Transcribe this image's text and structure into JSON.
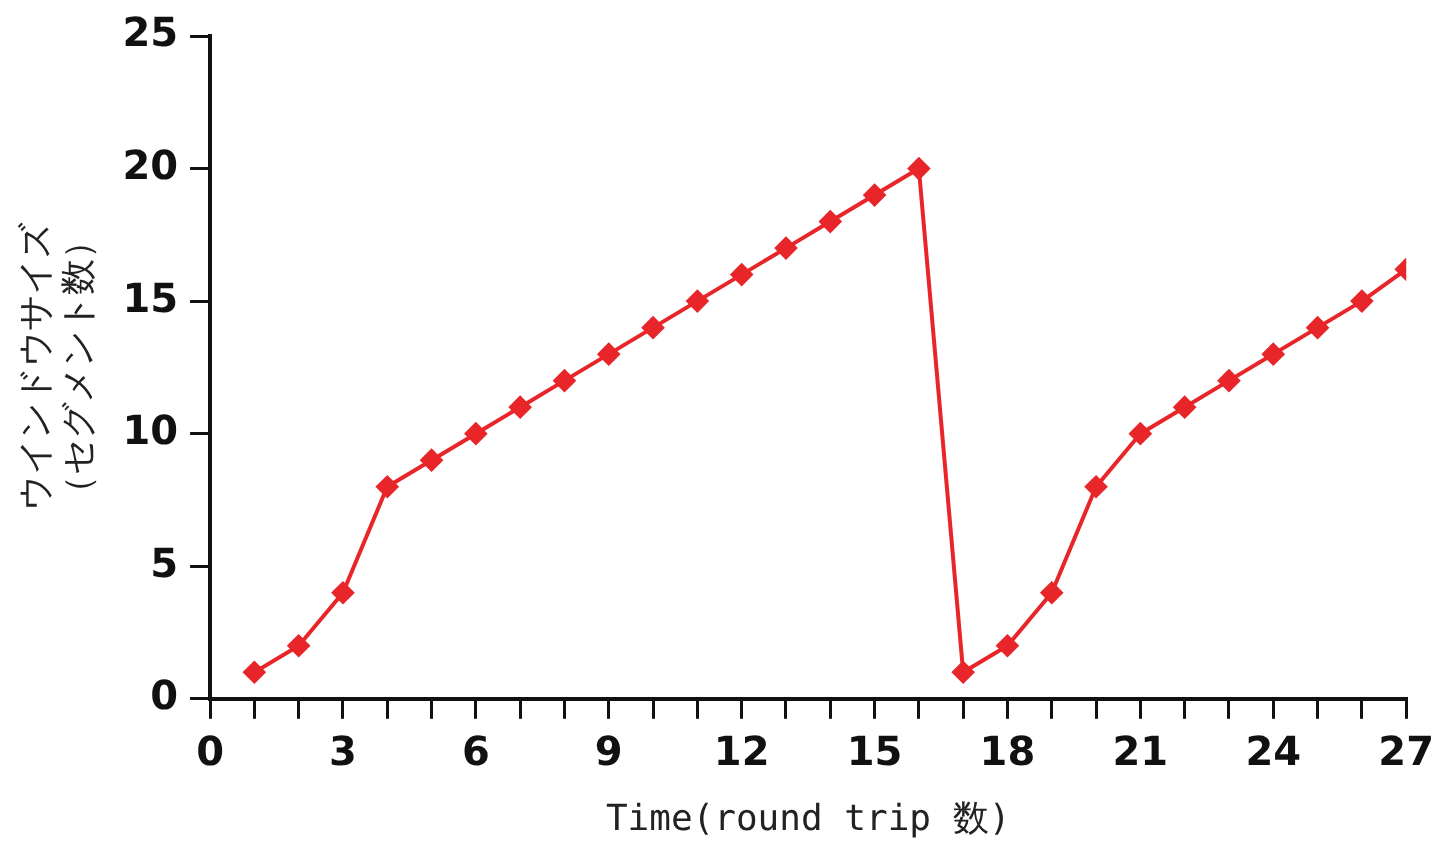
{
  "chart_data": {
    "type": "line",
    "xlabel": "Time(round trip 数)",
    "ylabel": "ウインドウサイズ（セグメント数）",
    "x": [
      1,
      2,
      3,
      4,
      5,
      6,
      7,
      8,
      9,
      10,
      11,
      12,
      13,
      14,
      15,
      16,
      17,
      18,
      19,
      20,
      21,
      22,
      23,
      24,
      25,
      26,
      27
    ],
    "series": [
      {
        "color": "#e8262a",
        "values": [
          1,
          2,
          4,
          8,
          9,
          10,
          11,
          12,
          13,
          14,
          15,
          16,
          17,
          18,
          19,
          20,
          1,
          2,
          4,
          8,
          10,
          11,
          12,
          13,
          14,
          15,
          16.2
        ]
      }
    ],
    "xlim": [
      0,
      27
    ],
    "xticks": [
      0,
      {
        "value": 1,
        "label": null
      },
      {
        "value": 2,
        "label": null
      },
      3,
      {
        "value": 4,
        "label": null
      },
      {
        "value": 5,
        "label": null
      },
      6,
      {
        "value": 7,
        "label": null
      },
      {
        "value": 8,
        "label": null
      },
      9,
      {
        "value": 10,
        "label": null
      },
      {
        "value": 11,
        "label": null
      },
      12,
      {
        "value": 13,
        "label": null
      },
      {
        "value": 14,
        "label": null
      },
      15,
      {
        "value": 16,
        "label": null
      },
      {
        "value": 17,
        "label": null
      },
      18,
      {
        "value": 19,
        "label": null
      },
      {
        "value": 20,
        "label": null
      },
      21,
      {
        "value": 22,
        "label": null
      },
      {
        "value": 23,
        "label": null
      },
      24,
      {
        "value": 25,
        "label": null
      },
      {
        "value": 26,
        "label": null
      },
      27
    ],
    "ylim": [
      0,
      25
    ],
    "yticks": [
      0,
      5,
      10,
      15,
      20,
      25
    ],
    "grid": false,
    "legend": false,
    "marker": "diamond",
    "line_style": "solid"
  }
}
